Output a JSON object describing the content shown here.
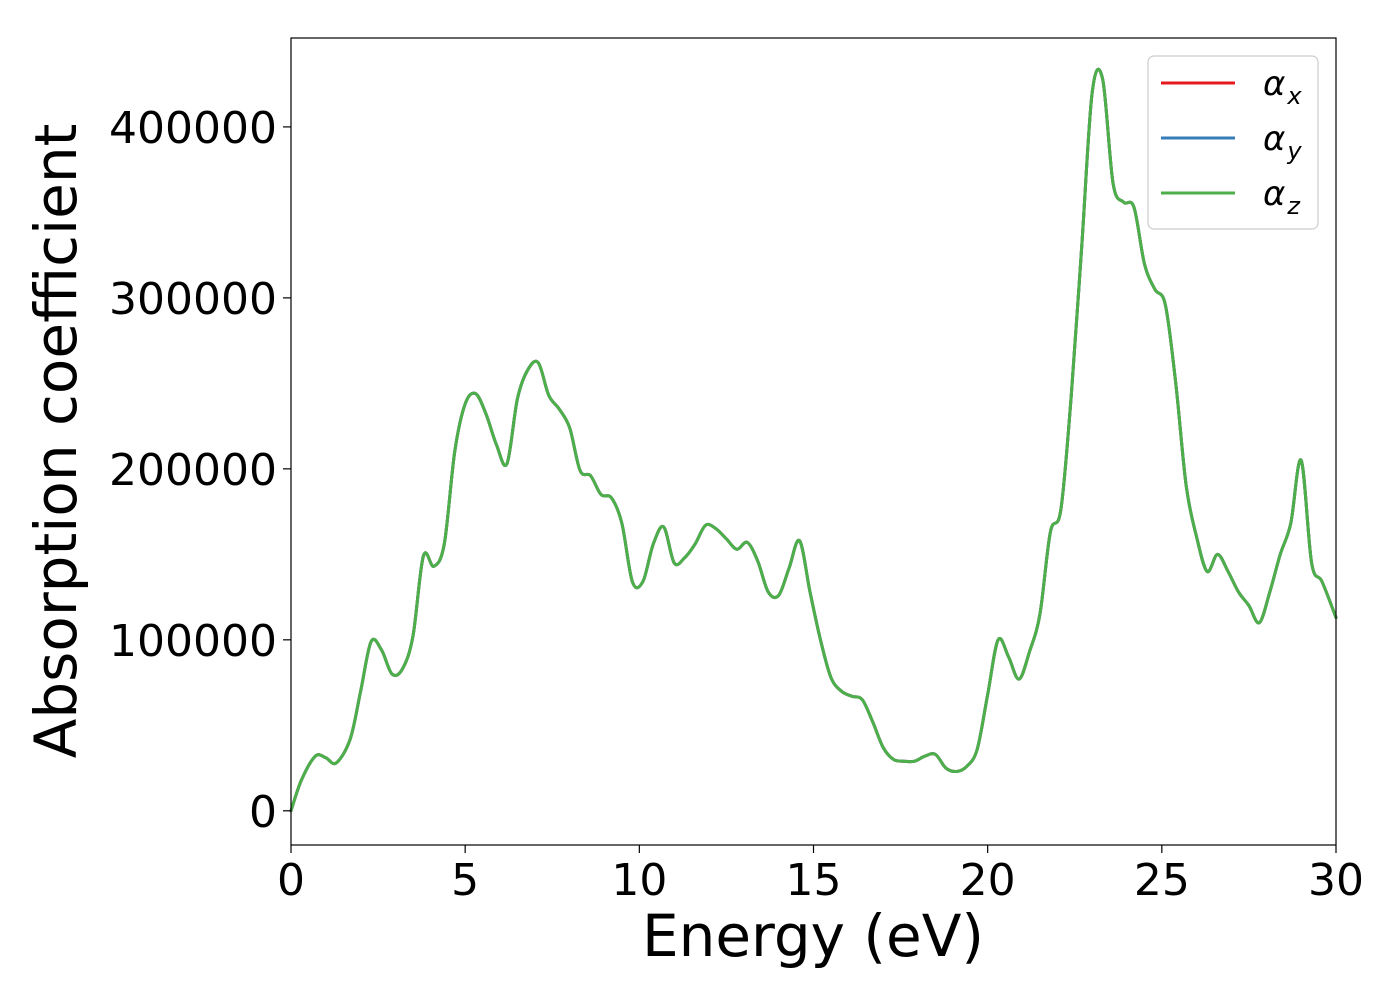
{
  "chart_data": {
    "type": "line",
    "title": "",
    "xlabel": "Energy (eV)",
    "ylabel": "Absorption coefficient",
    "xlim": [
      0,
      30
    ],
    "ylim": [
      -20000,
      452000
    ],
    "xticks": [
      0,
      5,
      10,
      15,
      20,
      25,
      30
    ],
    "yticks": [
      0,
      100000,
      200000,
      300000,
      400000
    ],
    "grid": false,
    "legend_position": "top-right",
    "series": [
      {
        "name": "α",
        "subscript": "x",
        "color": "#e41a1c",
        "x": [
          0,
          0.3,
          0.7,
          1.0,
          1.3,
          1.7,
          2.0,
          2.3,
          2.6,
          2.9,
          3.2,
          3.5,
          3.8,
          4.1,
          4.4,
          4.7,
          5.0,
          5.3,
          5.6,
          5.9,
          6.2,
          6.5,
          6.8,
          7.1,
          7.4,
          7.7,
          8.0,
          8.3,
          8.6,
          8.9,
          9.2,
          9.5,
          9.8,
          10.1,
          10.4,
          10.7,
          11.0,
          11.3,
          11.6,
          11.9,
          12.2,
          12.5,
          12.8,
          13.1,
          13.4,
          13.7,
          14.0,
          14.3,
          14.6,
          14.9,
          15.2,
          15.5,
          15.8,
          16.1,
          16.4,
          16.7,
          17.0,
          17.3,
          17.6,
          17.9,
          18.2,
          18.5,
          18.8,
          19.1,
          19.4,
          19.7,
          20.0,
          20.3,
          20.6,
          20.9,
          21.2,
          21.5,
          21.8,
          22.1,
          22.4,
          22.7,
          23.0,
          23.3,
          23.6,
          23.9,
          24.2,
          24.5,
          24.8,
          25.1,
          25.4,
          25.7,
          26.0,
          26.3,
          26.6,
          26.9,
          27.2,
          27.5,
          27.8,
          28.1,
          28.4,
          28.7,
          29.0,
          29.3,
          29.6,
          30.0
        ],
        "values": [
          0,
          18000,
          32000,
          31000,
          28000,
          42000,
          70000,
          99000,
          94000,
          80000,
          83000,
          102000,
          149000,
          143000,
          156000,
          210000,
          238000,
          244000,
          232000,
          214000,
          203000,
          241000,
          258000,
          262000,
          243000,
          235000,
          224000,
          199000,
          196000,
          185000,
          183000,
          168000,
          134000,
          134000,
          156000,
          166000,
          145000,
          148000,
          156000,
          167000,
          165000,
          159000,
          153000,
          157000,
          146000,
          128000,
          126000,
          142000,
          158000,
          128000,
          100000,
          78000,
          70000,
          67000,
          65000,
          52000,
          37000,
          30000,
          29000,
          29000,
          32000,
          33000,
          25000,
          23000,
          26000,
          36000,
          68000,
          100000,
          90000,
          77000,
          93000,
          115000,
          163000,
          176000,
          243000,
          330000,
          420000,
          428000,
          367000,
          356000,
          353000,
          320000,
          305000,
          296000,
          250000,
          190000,
          160000,
          140000,
          150000,
          140000,
          128000,
          120000,
          110000,
          128000,
          150000,
          168000,
          205000,
          145000,
          134000,
          113000
        ]
      },
      {
        "name": "α",
        "subscript": "y",
        "color": "#377eb8",
        "x": [
          0,
          0.3,
          0.7,
          1.0,
          1.3,
          1.7,
          2.0,
          2.3,
          2.6,
          2.9,
          3.2,
          3.5,
          3.8,
          4.1,
          4.4,
          4.7,
          5.0,
          5.3,
          5.6,
          5.9,
          6.2,
          6.5,
          6.8,
          7.1,
          7.4,
          7.7,
          8.0,
          8.3,
          8.6,
          8.9,
          9.2,
          9.5,
          9.8,
          10.1,
          10.4,
          10.7,
          11.0,
          11.3,
          11.6,
          11.9,
          12.2,
          12.5,
          12.8,
          13.1,
          13.4,
          13.7,
          14.0,
          14.3,
          14.6,
          14.9,
          15.2,
          15.5,
          15.8,
          16.1,
          16.4,
          16.7,
          17.0,
          17.3,
          17.6,
          17.9,
          18.2,
          18.5,
          18.8,
          19.1,
          19.4,
          19.7,
          20.0,
          20.3,
          20.6,
          20.9,
          21.2,
          21.5,
          21.8,
          22.1,
          22.4,
          22.7,
          23.0,
          23.3,
          23.6,
          23.9,
          24.2,
          24.5,
          24.8,
          25.1,
          25.4,
          25.7,
          26.0,
          26.3,
          26.6,
          26.9,
          27.2,
          27.5,
          27.8,
          28.1,
          28.4,
          28.7,
          29.0,
          29.3,
          29.6,
          30.0
        ],
        "values": [
          0,
          18000,
          32000,
          31000,
          28000,
          42000,
          70000,
          99000,
          94000,
          80000,
          83000,
          102000,
          149000,
          143000,
          156000,
          210000,
          238000,
          244000,
          232000,
          214000,
          203000,
          241000,
          258000,
          262000,
          243000,
          235000,
          224000,
          199000,
          196000,
          185000,
          183000,
          168000,
          134000,
          134000,
          156000,
          166000,
          145000,
          148000,
          156000,
          167000,
          165000,
          159000,
          153000,
          157000,
          146000,
          128000,
          126000,
          142000,
          158000,
          128000,
          100000,
          78000,
          70000,
          67000,
          65000,
          52000,
          37000,
          30000,
          29000,
          29000,
          32000,
          33000,
          25000,
          23000,
          26000,
          36000,
          68000,
          100000,
          90000,
          77000,
          93000,
          115000,
          163000,
          176000,
          243000,
          330000,
          420000,
          428000,
          367000,
          356000,
          353000,
          320000,
          305000,
          296000,
          250000,
          190000,
          160000,
          140000,
          150000,
          140000,
          128000,
          120000,
          110000,
          128000,
          150000,
          168000,
          205000,
          145000,
          134000,
          113000
        ]
      },
      {
        "name": "α",
        "subscript": "z",
        "color": "#4daf4a",
        "x": [
          0,
          0.3,
          0.7,
          1.0,
          1.3,
          1.7,
          2.0,
          2.3,
          2.6,
          2.9,
          3.2,
          3.5,
          3.8,
          4.1,
          4.4,
          4.7,
          5.0,
          5.3,
          5.6,
          5.9,
          6.2,
          6.5,
          6.8,
          7.1,
          7.4,
          7.7,
          8.0,
          8.3,
          8.6,
          8.9,
          9.2,
          9.5,
          9.8,
          10.1,
          10.4,
          10.7,
          11.0,
          11.3,
          11.6,
          11.9,
          12.2,
          12.5,
          12.8,
          13.1,
          13.4,
          13.7,
          14.0,
          14.3,
          14.6,
          14.9,
          15.2,
          15.5,
          15.8,
          16.1,
          16.4,
          16.7,
          17.0,
          17.3,
          17.6,
          17.9,
          18.2,
          18.5,
          18.8,
          19.1,
          19.4,
          19.7,
          20.0,
          20.3,
          20.6,
          20.9,
          21.2,
          21.5,
          21.8,
          22.1,
          22.4,
          22.7,
          23.0,
          23.3,
          23.6,
          23.9,
          24.2,
          24.5,
          24.8,
          25.1,
          25.4,
          25.7,
          26.0,
          26.3,
          26.6,
          26.9,
          27.2,
          27.5,
          27.8,
          28.1,
          28.4,
          28.7,
          29.0,
          29.3,
          29.6,
          30.0
        ],
        "values": [
          0,
          18000,
          32000,
          31000,
          28000,
          42000,
          70000,
          99000,
          94000,
          80000,
          83000,
          102000,
          149000,
          143000,
          156000,
          210000,
          238000,
          244000,
          232000,
          214000,
          203000,
          241000,
          258000,
          262000,
          243000,
          235000,
          224000,
          199000,
          196000,
          185000,
          183000,
          168000,
          134000,
          134000,
          156000,
          166000,
          145000,
          148000,
          156000,
          167000,
          165000,
          159000,
          153000,
          157000,
          146000,
          128000,
          126000,
          142000,
          158000,
          128000,
          100000,
          78000,
          70000,
          67000,
          65000,
          52000,
          37000,
          30000,
          29000,
          29000,
          32000,
          33000,
          25000,
          23000,
          26000,
          36000,
          68000,
          100000,
          90000,
          77000,
          93000,
          115000,
          163000,
          176000,
          243000,
          330000,
          420000,
          428000,
          367000,
          356000,
          353000,
          320000,
          305000,
          296000,
          250000,
          190000,
          160000,
          140000,
          150000,
          140000,
          128000,
          120000,
          110000,
          128000,
          150000,
          168000,
          205000,
          145000,
          134000,
          113000
        ]
      }
    ]
  }
}
